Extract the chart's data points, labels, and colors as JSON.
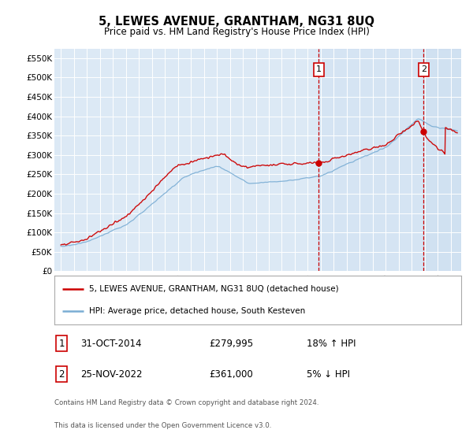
{
  "title": "5, LEWES AVENUE, GRANTHAM, NG31 8UQ",
  "subtitle": "Price paid vs. HM Land Registry's House Price Index (HPI)",
  "legend_line1": "5, LEWES AVENUE, GRANTHAM, NG31 8UQ (detached house)",
  "legend_line2": "HPI: Average price, detached house, South Kesteven",
  "footnote1": "Contains HM Land Registry data © Crown copyright and database right 2024.",
  "footnote2": "This data is licensed under the Open Government Licence v3.0.",
  "marker1_label": "1",
  "marker2_label": "2",
  "marker1_date": "31-OCT-2014",
  "marker1_price": "£279,995",
  "marker1_hpi": "18% ↑ HPI",
  "marker2_date": "25-NOV-2022",
  "marker2_price": "£361,000",
  "marker2_hpi": "5% ↓ HPI",
  "ylim": [
    0,
    575000
  ],
  "yticks": [
    0,
    50000,
    100000,
    150000,
    200000,
    250000,
    300000,
    350000,
    400000,
    450000,
    500000,
    550000
  ],
  "ytick_labels": [
    "£0",
    "£50K",
    "£100K",
    "£150K",
    "£200K",
    "£250K",
    "£300K",
    "£350K",
    "£400K",
    "£450K",
    "£500K",
    "£550K"
  ],
  "plot_bg": "#dce9f5",
  "highlight_bg": "#e8f0f8",
  "red_color": "#cc0000",
  "blue_color": "#7aadd4",
  "marker1_x": 2014.83,
  "marker2_x": 2022.9,
  "marker1_y": 279995,
  "marker2_y": 361000,
  "xmin": 1994.5,
  "xmax": 2025.8
}
